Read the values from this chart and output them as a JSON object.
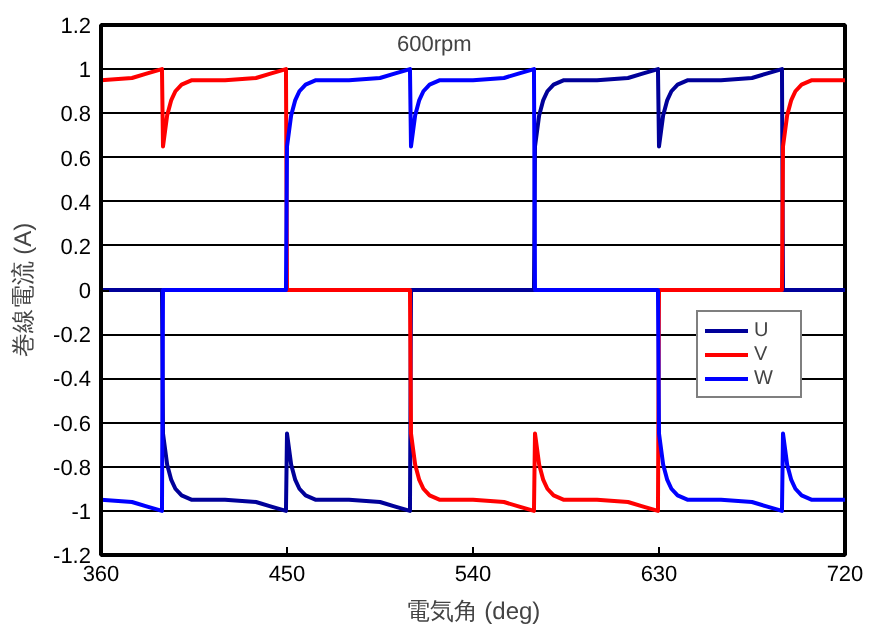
{
  "chart_data": {
    "type": "line",
    "xlabel": "電気角 (deg)",
    "ylabel": "巻線電流 (A)",
    "annotations": [
      "600rpm"
    ],
    "xlim": [
      360,
      720
    ],
    "xticks": [
      360,
      450,
      540,
      630,
      720
    ],
    "ylim": [
      -1.2,
      1.2
    ],
    "yticks": [
      1.2,
      1,
      0.8,
      0.6,
      0.4,
      0.2,
      0,
      -0.2,
      -0.4,
      -0.6,
      -0.8,
      -1,
      -1.2
    ],
    "grid": "y",
    "legend": "right",
    "marker": "none",
    "line_style": "solid",
    "series": [
      {
        "name": "U",
        "color": "#000099",
        "x": [
          360,
          389.5,
          390,
          391,
          392,
          394,
          396,
          399,
          404,
          420,
          435,
          442,
          449.5,
          450,
          451,
          452,
          454,
          456,
          459,
          464,
          480,
          495,
          502,
          509.5,
          510,
          569.5,
          570,
          571,
          572,
          574,
          576,
          579,
          584,
          600,
          615,
          622,
          629.5,
          630,
          631,
          632,
          634,
          636,
          639,
          644,
          660,
          675,
          682,
          689.5,
          690,
          720
        ],
        "values": [
          0,
          0,
          -0.65,
          -0.72,
          -0.79,
          -0.86,
          -0.9,
          -0.93,
          -0.95,
          -0.95,
          -0.96,
          -0.98,
          -1.0,
          -0.65,
          -0.72,
          -0.79,
          -0.86,
          -0.9,
          -0.93,
          -0.95,
          -0.95,
          -0.96,
          -0.98,
          -1.0,
          0,
          0,
          0.65,
          0.72,
          0.79,
          0.86,
          0.9,
          0.93,
          0.95,
          0.95,
          0.96,
          0.98,
          1.0,
          0.65,
          0.72,
          0.79,
          0.86,
          0.9,
          0.93,
          0.95,
          0.95,
          0.96,
          0.98,
          1.0,
          0,
          0
        ]
      },
      {
        "name": "V",
        "color": "#ff0000",
        "x": [
          360,
          375,
          382,
          389.5,
          390,
          391,
          392,
          394,
          396,
          399,
          404,
          420,
          435,
          442,
          449.5,
          450,
          509.5,
          510,
          511,
          512,
          514,
          516,
          519,
          524,
          540,
          555,
          562,
          569.5,
          570,
          571,
          572,
          574,
          576,
          579,
          584,
          600,
          615,
          622,
          629.5,
          630,
          689.5,
          690,
          691,
          692,
          694,
          696,
          699,
          704,
          720
        ],
        "values": [
          0.95,
          0.96,
          0.98,
          1.0,
          0.65,
          0.72,
          0.79,
          0.86,
          0.9,
          0.93,
          0.95,
          0.95,
          0.96,
          0.98,
          1.0,
          0,
          0,
          -0.65,
          -0.72,
          -0.79,
          -0.86,
          -0.9,
          -0.93,
          -0.95,
          -0.95,
          -0.96,
          -0.98,
          -1.0,
          -0.65,
          -0.72,
          -0.79,
          -0.86,
          -0.9,
          -0.93,
          -0.95,
          -0.95,
          -0.96,
          -0.98,
          -1.0,
          0,
          0,
          0.65,
          0.72,
          0.79,
          0.86,
          0.9,
          0.93,
          0.95,
          0.95
        ]
      },
      {
        "name": "W",
        "color": "#0000ff",
        "x": [
          360,
          375,
          382,
          389.5,
          390,
          449.5,
          450,
          451,
          452,
          454,
          456,
          459,
          464,
          480,
          495,
          502,
          509.5,
          510,
          511,
          512,
          514,
          516,
          519,
          524,
          540,
          555,
          562,
          569.5,
          570,
          629.5,
          630,
          631,
          632,
          634,
          636,
          639,
          644,
          660,
          675,
          682,
          689.5,
          690,
          691,
          692,
          694,
          696,
          699,
          704,
          720
        ],
        "values": [
          -0.95,
          -0.96,
          -0.98,
          -1.0,
          0,
          0,
          0.65,
          0.72,
          0.79,
          0.86,
          0.9,
          0.93,
          0.95,
          0.95,
          0.96,
          0.98,
          1.0,
          0.65,
          0.72,
          0.79,
          0.86,
          0.9,
          0.93,
          0.95,
          0.95,
          0.96,
          0.98,
          1.0,
          0,
          0,
          -0.65,
          -0.72,
          -0.79,
          -0.86,
          -0.9,
          -0.93,
          -0.95,
          -0.95,
          -0.96,
          -0.98,
          -1.0,
          -0.65,
          -0.72,
          -0.79,
          -0.86,
          -0.9,
          -0.93,
          -0.95,
          -0.95
        ]
      }
    ]
  }
}
